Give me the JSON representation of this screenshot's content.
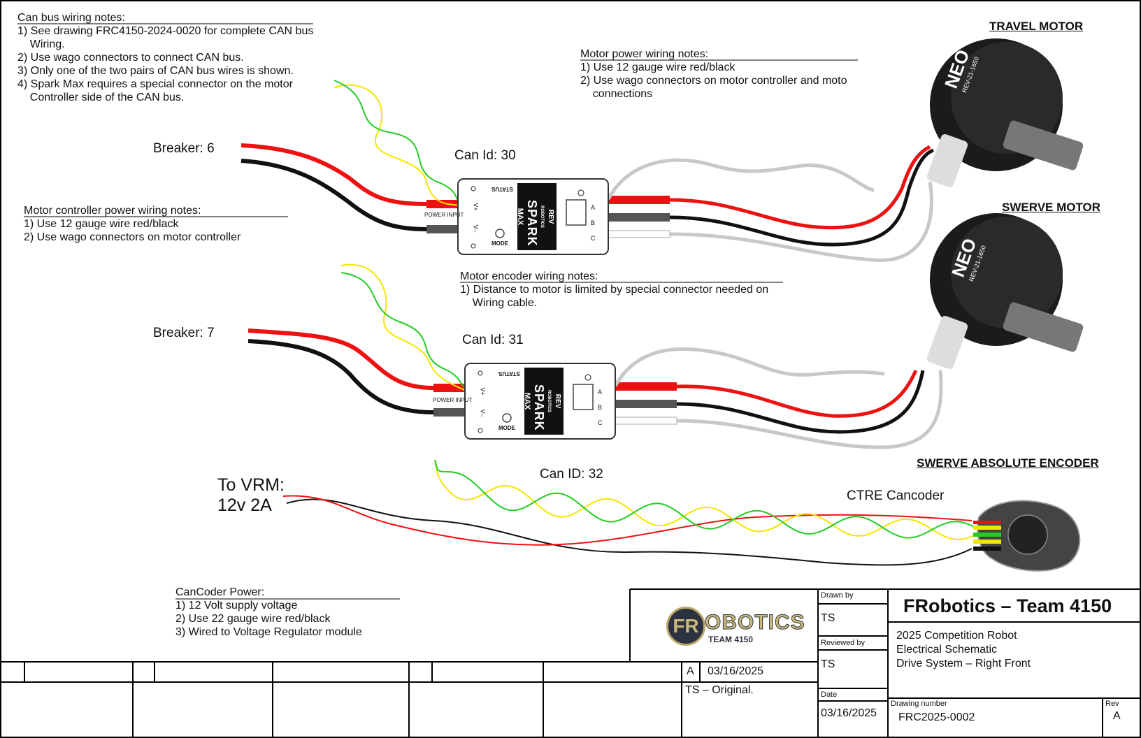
{
  "can_notes": {
    "title": "Can bus wiring notes:",
    "lines": [
      "1) See drawing FRC4150-2024-0020 for complete CAN bus",
      "    Wiring.",
      "2) Use wago  connectors to connect CAN bus.",
      "3) Only one of the two pairs of CAN bus wires is shown.",
      "4) Spark Max requires a special connector on the motor",
      "    Controller side of the CAN bus."
    ]
  },
  "controller_power_notes": {
    "title": "Motor controller power wiring notes:",
    "lines": [
      "1) Use 12 gauge wire red/black",
      "2) Use wago connectors on motor controller"
    ]
  },
  "motor_power_notes": {
    "title": "Motor power wiring notes:",
    "lines": [
      "1) Use 12 gauge wire red/black",
      "2) Use wago connectors on motor controller and moto",
      "    connections"
    ]
  },
  "encoder_notes": {
    "title": "Motor encoder wiring notes:",
    "lines": [
      "1) Distance to motor is limited by special connector needed on",
      "    Wiring cable."
    ]
  },
  "cancoder_power_notes": {
    "title": "CanCoder Power:",
    "lines": [
      "1) 12 Volt supply voltage",
      "2) Use 22 gauge wire red/black",
      "3) Wired to Voltage Regulator module"
    ]
  },
  "labels": {
    "breaker_1": "Breaker: 6",
    "breaker_2": "Breaker: 7",
    "can_id_1": "Can Id: 30",
    "can_id_2": "Can Id: 31",
    "can_id_3": "Can ID: 32",
    "vrm_line1": "To VRM:",
    "vrm_line2": "12v 2A",
    "cancoder": "CTRE Cancoder"
  },
  "headings": {
    "travel_motor": "TRAVEL MOTOR",
    "swerve_motor": "SWERVE MOTOR",
    "swerve_encoder": "SWERVE ABSOLUTE ENCODER"
  },
  "controller": {
    "brand": "REV",
    "brand_sub": "ROBOTICS",
    "name": "SPARK",
    "name_sub": "MAX",
    "status": "STATUS",
    "mode": "MODE",
    "power_input": "POWER INPUT",
    "vplus": "V+",
    "vminus": "V–",
    "a": "A",
    "b": "B",
    "c": "C"
  },
  "motor": {
    "brand": "NEO",
    "model": "REV-21-1650"
  },
  "logo": {
    "fr": "FR",
    "obotics": "OBOTICS",
    "team": "TEAM 4150"
  },
  "title_block": {
    "drawn_by_label": "Drawn by",
    "drawn_by": "TS",
    "reviewed_by_label": "Reviewed by",
    "reviewed_by": "TS",
    "date_label": "Date",
    "date": "03/16/2025",
    "company": "FRobotics – Team 4150",
    "desc1": "2025 Competition Robot",
    "desc2": "Electrical Schematic",
    "desc3": "Drive System – Right Front",
    "drawing_number_label": "Drawing number",
    "drawing_number": "FRC2025-0002",
    "rev_label": "Rev",
    "rev": "A",
    "revision_letter": "A",
    "revision_date": "03/16/2025",
    "revision_note": "TS – Original."
  },
  "colors": {
    "red_wire": "#ee1111",
    "black_wire": "#111111",
    "gray_wire": "#c8c8c8",
    "yellow_wire": "#f2e600",
    "green_wire": "#22cc22",
    "motor_body": "#1b1b1b"
  }
}
